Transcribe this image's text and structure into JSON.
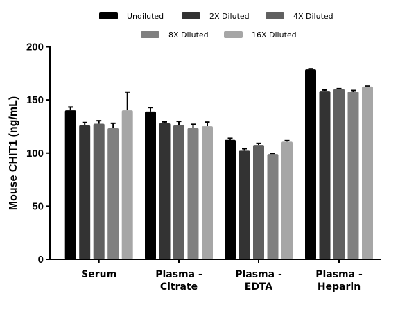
{
  "chart_data": {
    "type": "bar",
    "title": "",
    "xlabel": "",
    "ylabel": "Mouse CHIT1 (ng/mL)",
    "ylim": [
      0,
      200
    ],
    "yticks": [
      "0",
      "50",
      "100",
      "150",
      "200"
    ],
    "grid": false,
    "legend_position": "top",
    "categories": [
      [
        "Serum"
      ],
      [
        "Plasma -",
        "Citrate"
      ],
      [
        "Plasma -",
        "EDTA"
      ],
      [
        "Plasma -",
        "Heparin"
      ]
    ],
    "series": [
      {
        "name": "Undiluted",
        "color": "#000000",
        "values": [
          140.2,
          139.1,
          112.4,
          178.7
        ],
        "errors": [
          3.1,
          3.7,
          1.5,
          0.6
        ]
      },
      {
        "name": "2X Diluted",
        "color": "#333333",
        "values": [
          126.1,
          128.0,
          102.2,
          158.5
        ],
        "errors": [
          2.6,
          1.3,
          1.9,
          0.8
        ]
      },
      {
        "name": "4X Diluted",
        "color": "#606060",
        "values": [
          127.6,
          126.1,
          107.6,
          160.2
        ],
        "errors": [
          2.8,
          3.7,
          1.5,
          0.4
        ]
      },
      {
        "name": "8X Diluted",
        "color": "#808080",
        "values": [
          123.3,
          123.5,
          99.1,
          157.8
        ],
        "errors": [
          4.7,
          3.5,
          0.4,
          1.1
        ]
      },
      {
        "name": "16X Diluted",
        "color": "#a6a6a6",
        "values": [
          140.2,
          125.2,
          110.7,
          162.6
        ],
        "errors": [
          17.2,
          3.9,
          1.0,
          0.4
        ]
      }
    ]
  }
}
